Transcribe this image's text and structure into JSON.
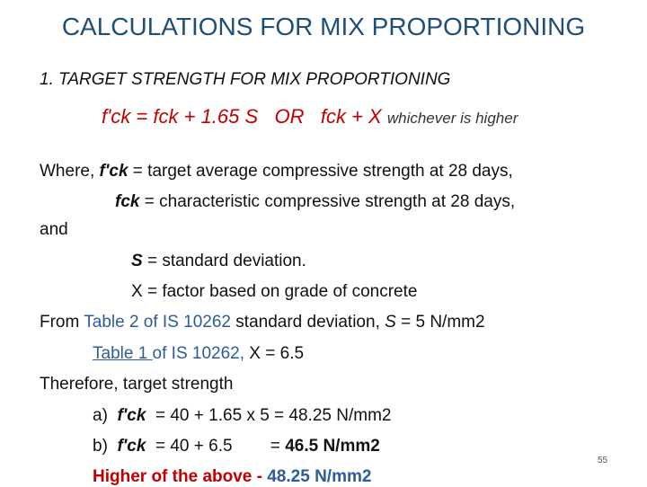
{
  "title": "CALCULATIONS FOR MIX PROPORTIONING",
  "heading": "1. TARGET STRENGTH FOR MIX PROPORTIONING",
  "formula": {
    "main": "f'ck = fck + 1.65 S   OR   fck + X",
    "note": "whichever is higher"
  },
  "definitions": {
    "line1_prefix": "Where, ",
    "line1_term": "f'ck",
    "line1_text": " = target average compressive strength at 28 days,",
    "line2_term": "fck",
    "line2_text": " = characteristic compressive strength at 28 days,",
    "and": "and",
    "line3_term": "S",
    "line3_text": " = standard deviation.",
    "line4": "X = factor based on grade of concrete"
  },
  "reference": {
    "line1_prefix": "From ",
    "line1_ref": "Table 2 of IS 10262",
    "line1_text": " standard deviation, ",
    "line1_var": "S",
    "line1_val": " = 5 N/mm2",
    "line2_link": "Table 1 ",
    "line2_ref": "of IS 10262,",
    "line2_text": " X = 6.5"
  },
  "result": {
    "intro": "Therefore, target strength",
    "a_label": "a)  ",
    "a_term": "f'ck",
    "a_text": "  = 40 + 1.65 x 5 = 48.25 N/mm2",
    "b_label": "b)  ",
    "b_term": "f'ck",
    "b_text": "  = 40 + 6.5        = ",
    "b_value": "46.5 N/mm2",
    "final_prefix": "Higher of the above - ",
    "final_value": "48.25 N/mm2"
  },
  "page_number": "55"
}
